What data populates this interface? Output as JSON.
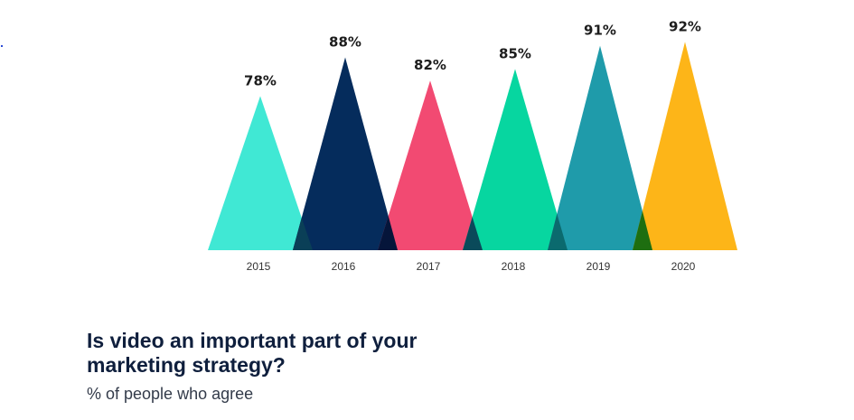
{
  "chart_data": {
    "type": "bar",
    "mark_shape": "triangle",
    "categories": [
      "2015",
      "2016",
      "2017",
      "2018",
      "2019",
      "2020"
    ],
    "values": [
      78,
      88,
      82,
      85,
      91,
      92
    ],
    "value_labels": [
      "78%",
      "88%",
      "82%",
      "85%",
      "91%",
      "92%"
    ],
    "colors": [
      "#40E8D4",
      "#052C5C",
      "#F24A72",
      "#07D6A0",
      "#1F9BAA",
      "#FDB518"
    ],
    "overlap_colors": [
      "#0A3F57",
      "#05153A",
      "#0A4A5A",
      "#0B6A6E",
      "#1E6E10"
    ],
    "title": "Is video an important part of your marketing strategy?",
    "subtitle": "% of people who agree",
    "xlabel": "",
    "ylabel": "",
    "unit": "%"
  }
}
